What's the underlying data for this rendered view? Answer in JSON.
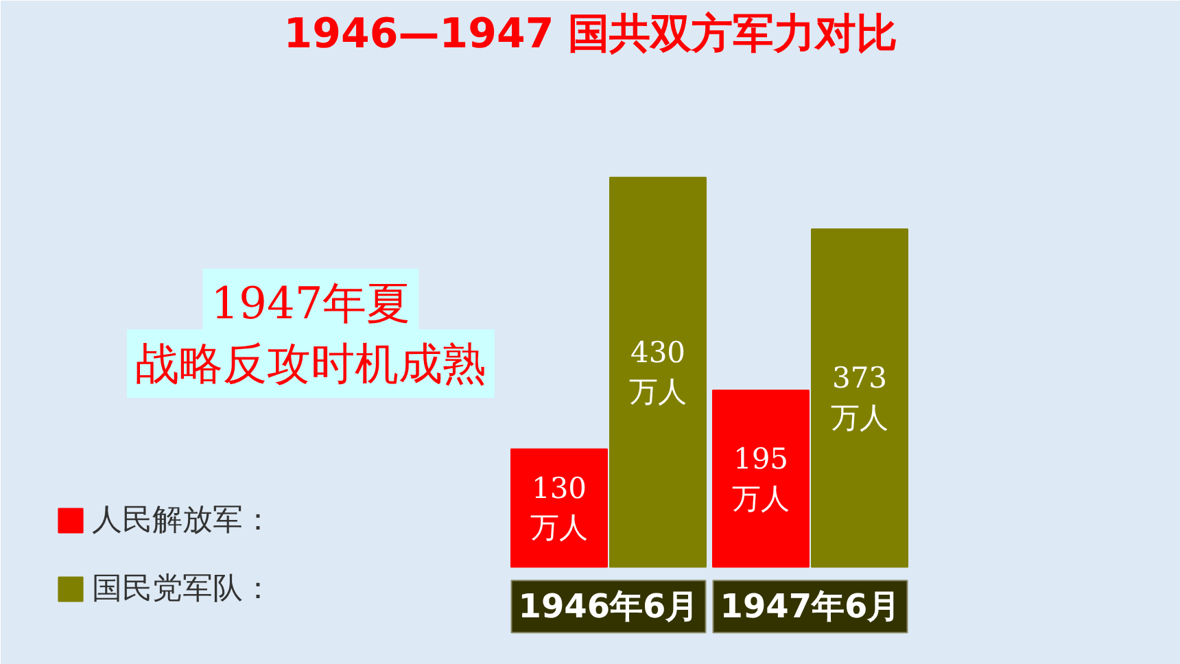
{
  "chart_data": {
    "type": "bar",
    "title": "1946—1947 国共双方军力对比",
    "categories": [
      "1946年6月",
      "1947年6月"
    ],
    "series": [
      {
        "name": "人民解放军：",
        "color": "#ff0000",
        "values": [
          130,
          195
        ],
        "value_labels": [
          "130\n万人",
          "195\n万人"
        ]
      },
      {
        "name": "国民党军队：",
        "color": "#808000",
        "values": [
          430,
          373
        ],
        "value_labels": [
          "430\n万人",
          "373\n万人"
        ]
      }
    ],
    "legend": "bottom left",
    "annotations": [
      "1947年夏",
      "战略反攻时机成熟"
    ]
  }
}
